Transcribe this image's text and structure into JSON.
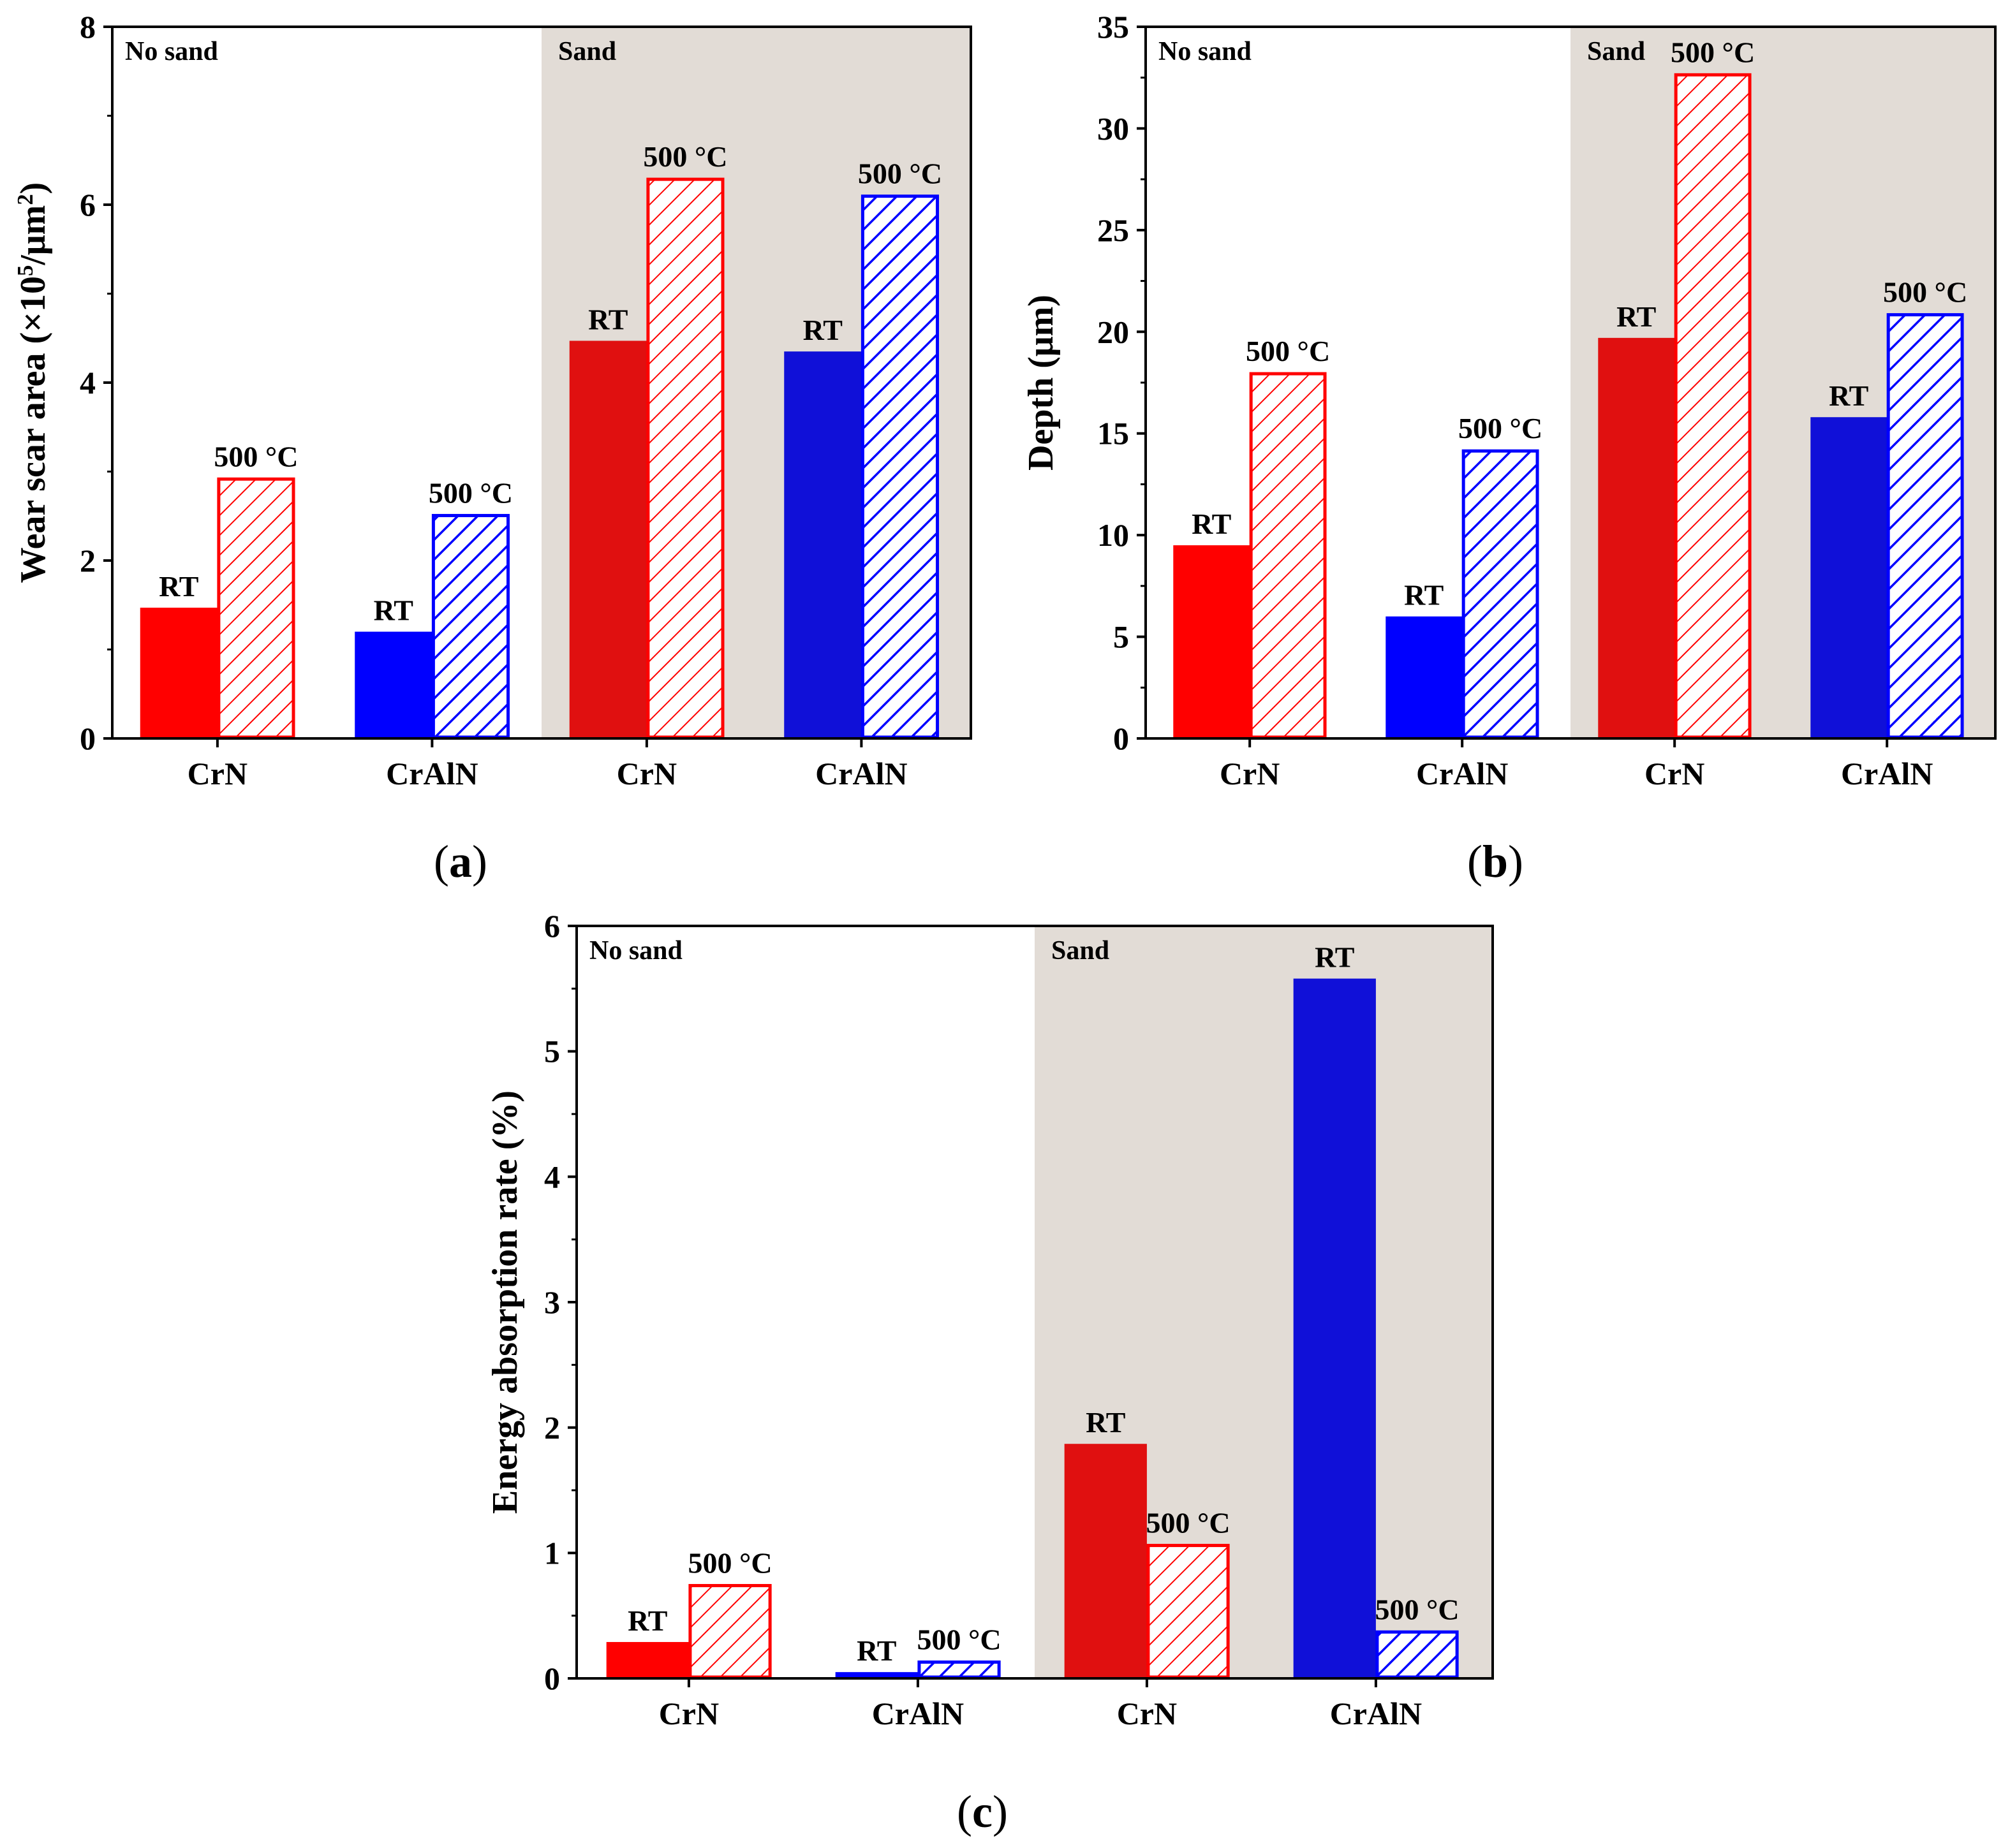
{
  "figure": {
    "captions": [
      {
        "open": "(",
        "letter": "a",
        "close": ")"
      },
      {
        "open": "(",
        "letter": "b",
        "close": ")"
      },
      {
        "open": "(",
        "letter": "c",
        "close": ")"
      }
    ],
    "region_labels": {
      "left": "No sand",
      "right": "Sand"
    },
    "colors": {
      "red": "#ff0000",
      "dark_red": "#e01010",
      "blue": "#0000ff",
      "dark_blue": "#1010d8",
      "sand_bg": "#e2dcd6"
    }
  },
  "chart_data": [
    {
      "type": "bar",
      "panel": "a",
      "ylabel_pre": "Wear scar area (×10",
      "ylabel_sup1": "5",
      "ylabel_mid": "/μm",
      "ylabel_sup2": "2",
      "ylabel_post": ")",
      "ylim": [
        0,
        8
      ],
      "yticks": [
        0,
        2,
        4,
        6,
        8
      ],
      "categories": [
        "CrN",
        "CrAlN",
        "CrN",
        "CrAlN"
      ],
      "regions": [
        "No sand",
        "No sand",
        "Sand",
        "Sand"
      ],
      "series": [
        {
          "name": "RT",
          "label": "RT",
          "values": [
            1.47,
            1.2,
            4.47,
            4.35
          ]
        },
        {
          "name": "500 °C",
          "label": "500 °C",
          "values": [
            2.93,
            2.52,
            6.3,
            6.11
          ]
        }
      ]
    },
    {
      "type": "bar",
      "panel": "b",
      "ylabel": "Depth (μm)",
      "ylim": [
        0,
        35
      ],
      "yticks": [
        0,
        5,
        10,
        15,
        20,
        25,
        30,
        35
      ],
      "categories": [
        "CrN",
        "CrAlN",
        "CrN",
        "CrAlN"
      ],
      "regions": [
        "No sand",
        "No sand",
        "Sand",
        "Sand"
      ],
      "series": [
        {
          "name": "RT",
          "label": "RT",
          "values": [
            9.5,
            6.0,
            19.7,
            15.8
          ]
        },
        {
          "name": "500 °C",
          "label": "500 °C",
          "values": [
            18.0,
            14.2,
            32.7,
            20.9
          ]
        }
      ]
    },
    {
      "type": "bar",
      "panel": "c",
      "ylabel": "Energy absorption rate (%)",
      "ylim": [
        0,
        6
      ],
      "yticks": [
        0,
        1,
        2,
        3,
        4,
        5,
        6
      ],
      "categories": [
        "CrN",
        "CrAlN",
        "CrN",
        "CrAlN"
      ],
      "regions": [
        "No sand",
        "No sand",
        "Sand",
        "Sand"
      ],
      "series": [
        {
          "name": "RT",
          "label": "RT",
          "values": [
            0.29,
            0.05,
            1.87,
            5.58
          ]
        },
        {
          "name": "500 °C",
          "label": "500 °C",
          "values": [
            0.75,
            0.14,
            1.07,
            0.38
          ]
        }
      ]
    }
  ]
}
